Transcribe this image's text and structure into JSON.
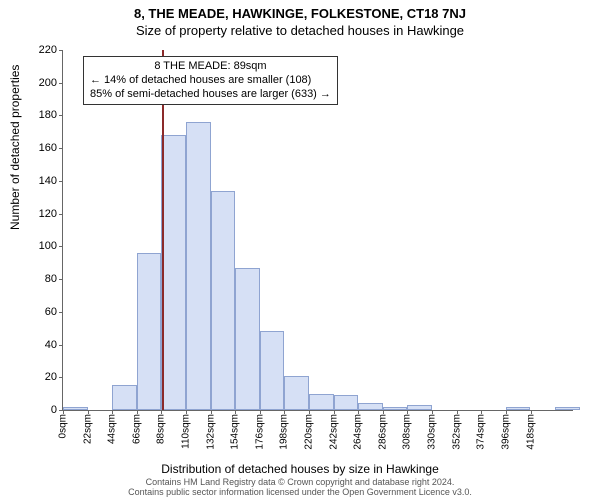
{
  "titles": {
    "main": "8, THE MEADE, HAWKINGE, FOLKESTONE, CT18 7NJ",
    "sub": "Size of property relative to detached houses in Hawkinge"
  },
  "axis": {
    "ylabel": "Number of detached properties",
    "xlabel": "Distribution of detached houses by size in Hawkinge",
    "ymax": 220,
    "ytick_step": 20,
    "xmax": 456,
    "xtick_step": 22,
    "xtick_suffix": "sqm",
    "label_fontsize": 12,
    "tick_fontsize": 11
  },
  "chart": {
    "type": "histogram",
    "bar_fill": "#d6e0f5",
    "bar_border": "#8fa4d1",
    "background": "#ffffff",
    "bin_width": 22,
    "values": [
      2,
      0,
      15,
      96,
      168,
      176,
      134,
      87,
      48,
      21,
      10,
      9,
      4,
      2,
      3,
      0,
      0,
      0,
      2,
      0,
      2
    ],
    "marker_value": 89,
    "marker_color": "#8b2a2a"
  },
  "annotation": {
    "line1": "8 THE MEADE: 89sqm",
    "line2": "← 14% of detached houses are smaller (108)",
    "line3": "85% of semi-detached houses are larger (633) →"
  },
  "footer": {
    "line1": "Contains HM Land Registry data © Crown copyright and database right 2024.",
    "line2": "Contains public sector information licensed under the Open Government Licence v3.0."
  }
}
